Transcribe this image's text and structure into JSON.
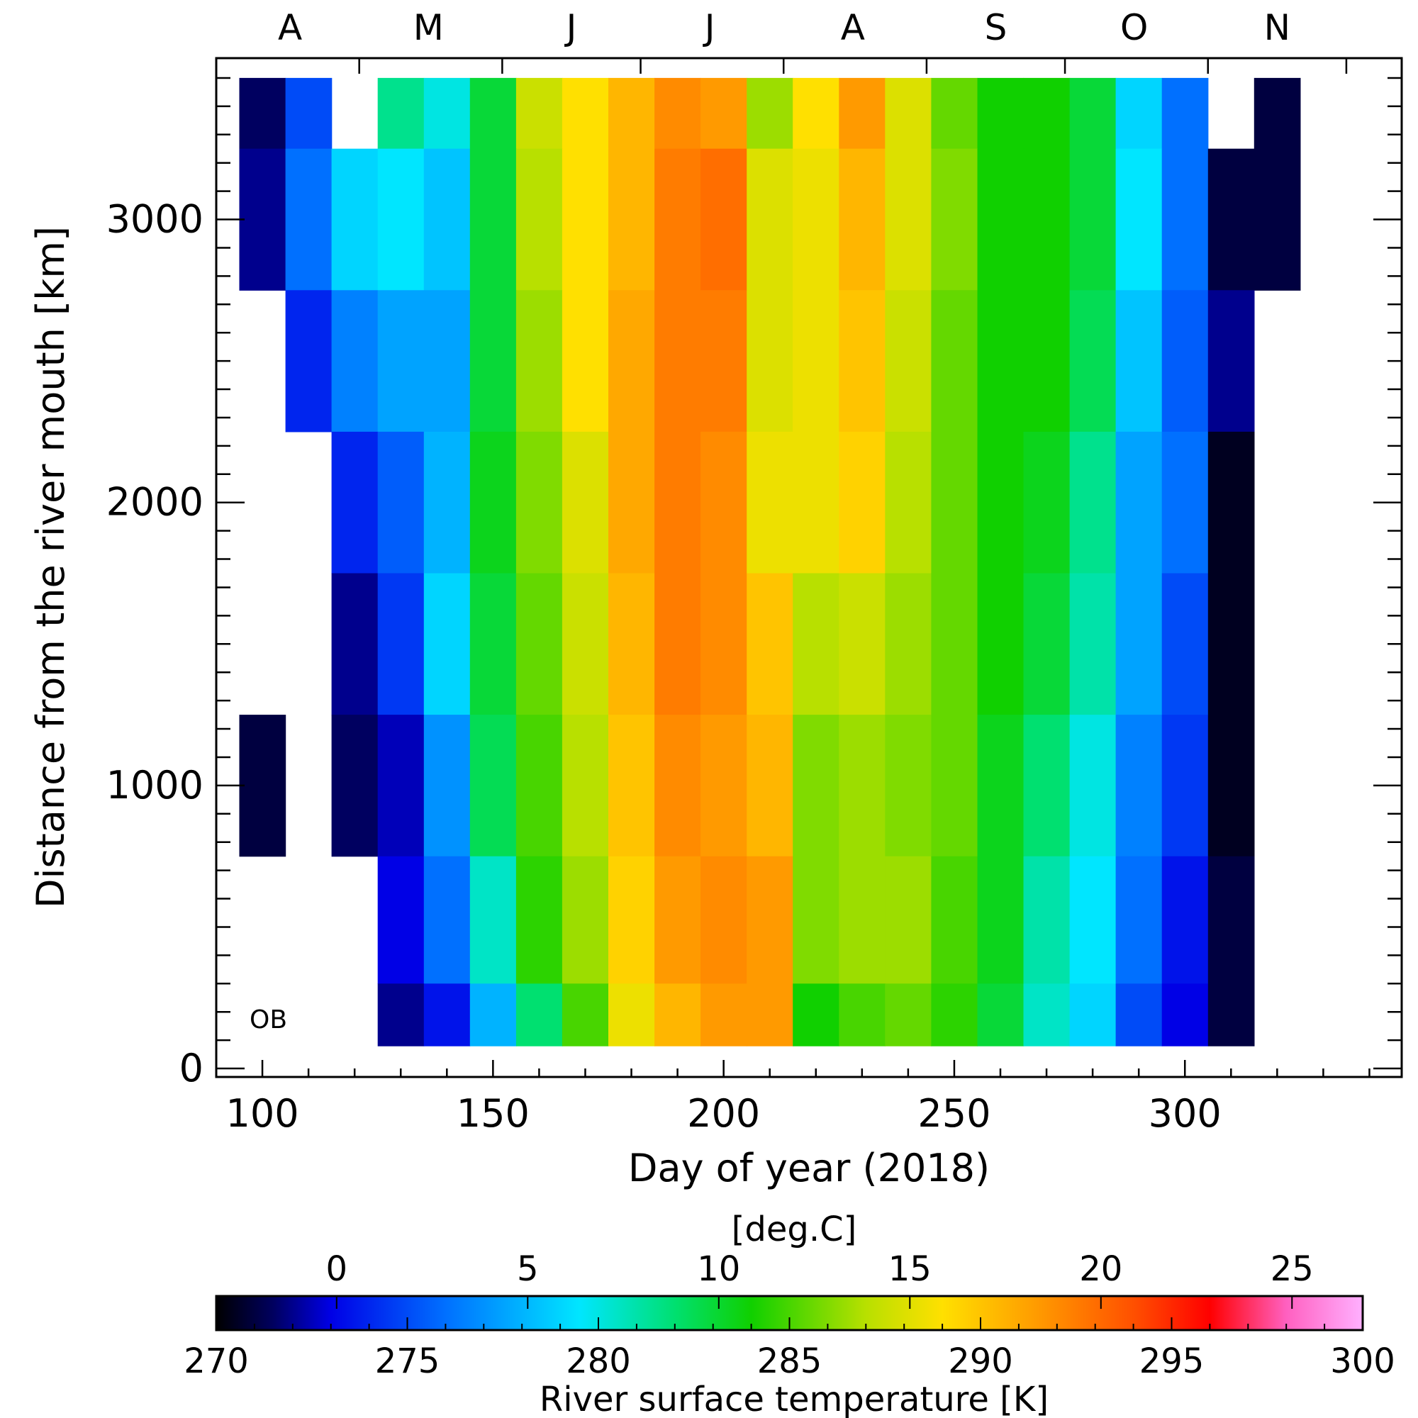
{
  "chart_data": {
    "type": "heatmap",
    "title": "",
    "river_label": "OB",
    "xlabel": "Day of year (2018)",
    "ylabel": "Distance from the river mouth [km]",
    "xlim": [
      90,
      347
    ],
    "ylim": [
      -30,
      3570
    ],
    "x_ticks": [
      100,
      150,
      200,
      250,
      300
    ],
    "y_ticks": [
      0,
      1000,
      2000,
      3000
    ],
    "x_minor_step": 10,
    "y_minor_step": 100,
    "month_labels": [
      {
        "label": "A",
        "day": 106
      },
      {
        "label": "M",
        "day": 136
      },
      {
        "label": "J",
        "day": 167
      },
      {
        "label": "J",
        "day": 197
      },
      {
        "label": "A",
        "day": 228
      },
      {
        "label": "S",
        "day": 259
      },
      {
        "label": "O",
        "day": 289
      },
      {
        "label": "N",
        "day": 320
      }
    ],
    "month_boundaries": [
      121,
      152,
      182,
      213,
      244,
      274,
      305,
      335
    ],
    "colorbar": {
      "label": "River surface temperature [K]",
      "secondary_label": "[deg.C]",
      "range_K": [
        270,
        300
      ],
      "ticks_K": [
        270,
        275,
        280,
        285,
        290,
        295,
        300
      ],
      "ticks_C": [
        0,
        5,
        10,
        15,
        20,
        25
      ],
      "minor_step_K": 1,
      "colormap": [
        {
          "K": 270,
          "color": "#000000"
        },
        {
          "K": 271.5,
          "color": "#000060"
        },
        {
          "K": 273,
          "color": "#0000e6"
        },
        {
          "K": 276,
          "color": "#0070ff"
        },
        {
          "K": 279.5,
          "color": "#00e6ff"
        },
        {
          "K": 282,
          "color": "#00e070"
        },
        {
          "K": 284,
          "color": "#10d000"
        },
        {
          "K": 287,
          "color": "#b8e000"
        },
        {
          "K": 289,
          "color": "#ffe000"
        },
        {
          "K": 291.5,
          "color": "#ff9a00"
        },
        {
          "K": 294,
          "color": "#ff5000"
        },
        {
          "K": 296,
          "color": "#ff0000"
        },
        {
          "K": 298,
          "color": "#ff60c0"
        },
        {
          "K": 300,
          "color": "#ffb0ff"
        }
      ]
    },
    "temperature_field_K": {
      "distance_km": [
        3500,
        3000,
        2500,
        2000,
        1500,
        1000,
        500,
        100
      ],
      "day_of_year": [
        100,
        110,
        120,
        130,
        140,
        150,
        160,
        170,
        180,
        190,
        200,
        210,
        220,
        230,
        240,
        250,
        260,
        270,
        280,
        290,
        300,
        310,
        320
      ],
      "values": [
        [
          271.5,
          275,
          null,
          281.5,
          280,
          283,
          287.5,
          289,
          290.5,
          292,
          291.5,
          286.5,
          289,
          291.5,
          288,
          285.5,
          284,
          284,
          283,
          279,
          276,
          null,
          271
        ],
        [
          272,
          276,
          279,
          279.5,
          278.5,
          283,
          287,
          289,
          290.5,
          292.5,
          293,
          288,
          288.5,
          290.5,
          288,
          286,
          284,
          284,
          283,
          279.5,
          276,
          271,
          271
        ],
        [
          null,
          274,
          276.5,
          277.5,
          277.5,
          283,
          286.5,
          289,
          291,
          292.5,
          292.5,
          288,
          288.5,
          290,
          287.5,
          285.5,
          284,
          284,
          282.5,
          278.5,
          275.5,
          272,
          null
        ],
        [
          null,
          null,
          274,
          275.5,
          278,
          283.5,
          286,
          288,
          291,
          292.5,
          292,
          288.5,
          288.5,
          289.5,
          287,
          285.5,
          284,
          283.5,
          281.5,
          277.5,
          276,
          270.5,
          null
        ],
        [
          null,
          null,
          272,
          274.5,
          279,
          283,
          285.5,
          287.5,
          290.5,
          292.5,
          292,
          290,
          287,
          287.5,
          286.5,
          285.5,
          284,
          283,
          281,
          277.5,
          275,
          270.5,
          null
        ],
        [
          271,
          null,
          271.5,
          272.5,
          277,
          282.5,
          285,
          287,
          290,
          292,
          291.5,
          290.5,
          286,
          286.5,
          286,
          285.5,
          283.5,
          282,
          280,
          276.5,
          274.5,
          270.5,
          null
        ],
        [
          null,
          null,
          null,
          273,
          276,
          280.5,
          284.5,
          286.5,
          289.5,
          291.5,
          292,
          291.5,
          286,
          286.5,
          286.5,
          285,
          283.5,
          281,
          279.5,
          276,
          273.5,
          271,
          null
        ],
        [
          null,
          null,
          null,
          272,
          273.5,
          278,
          282,
          285,
          288.5,
          290.5,
          291.5,
          291.5,
          284,
          285,
          285.5,
          284.5,
          283,
          280.5,
          279,
          275,
          273,
          271,
          null
        ]
      ]
    }
  }
}
